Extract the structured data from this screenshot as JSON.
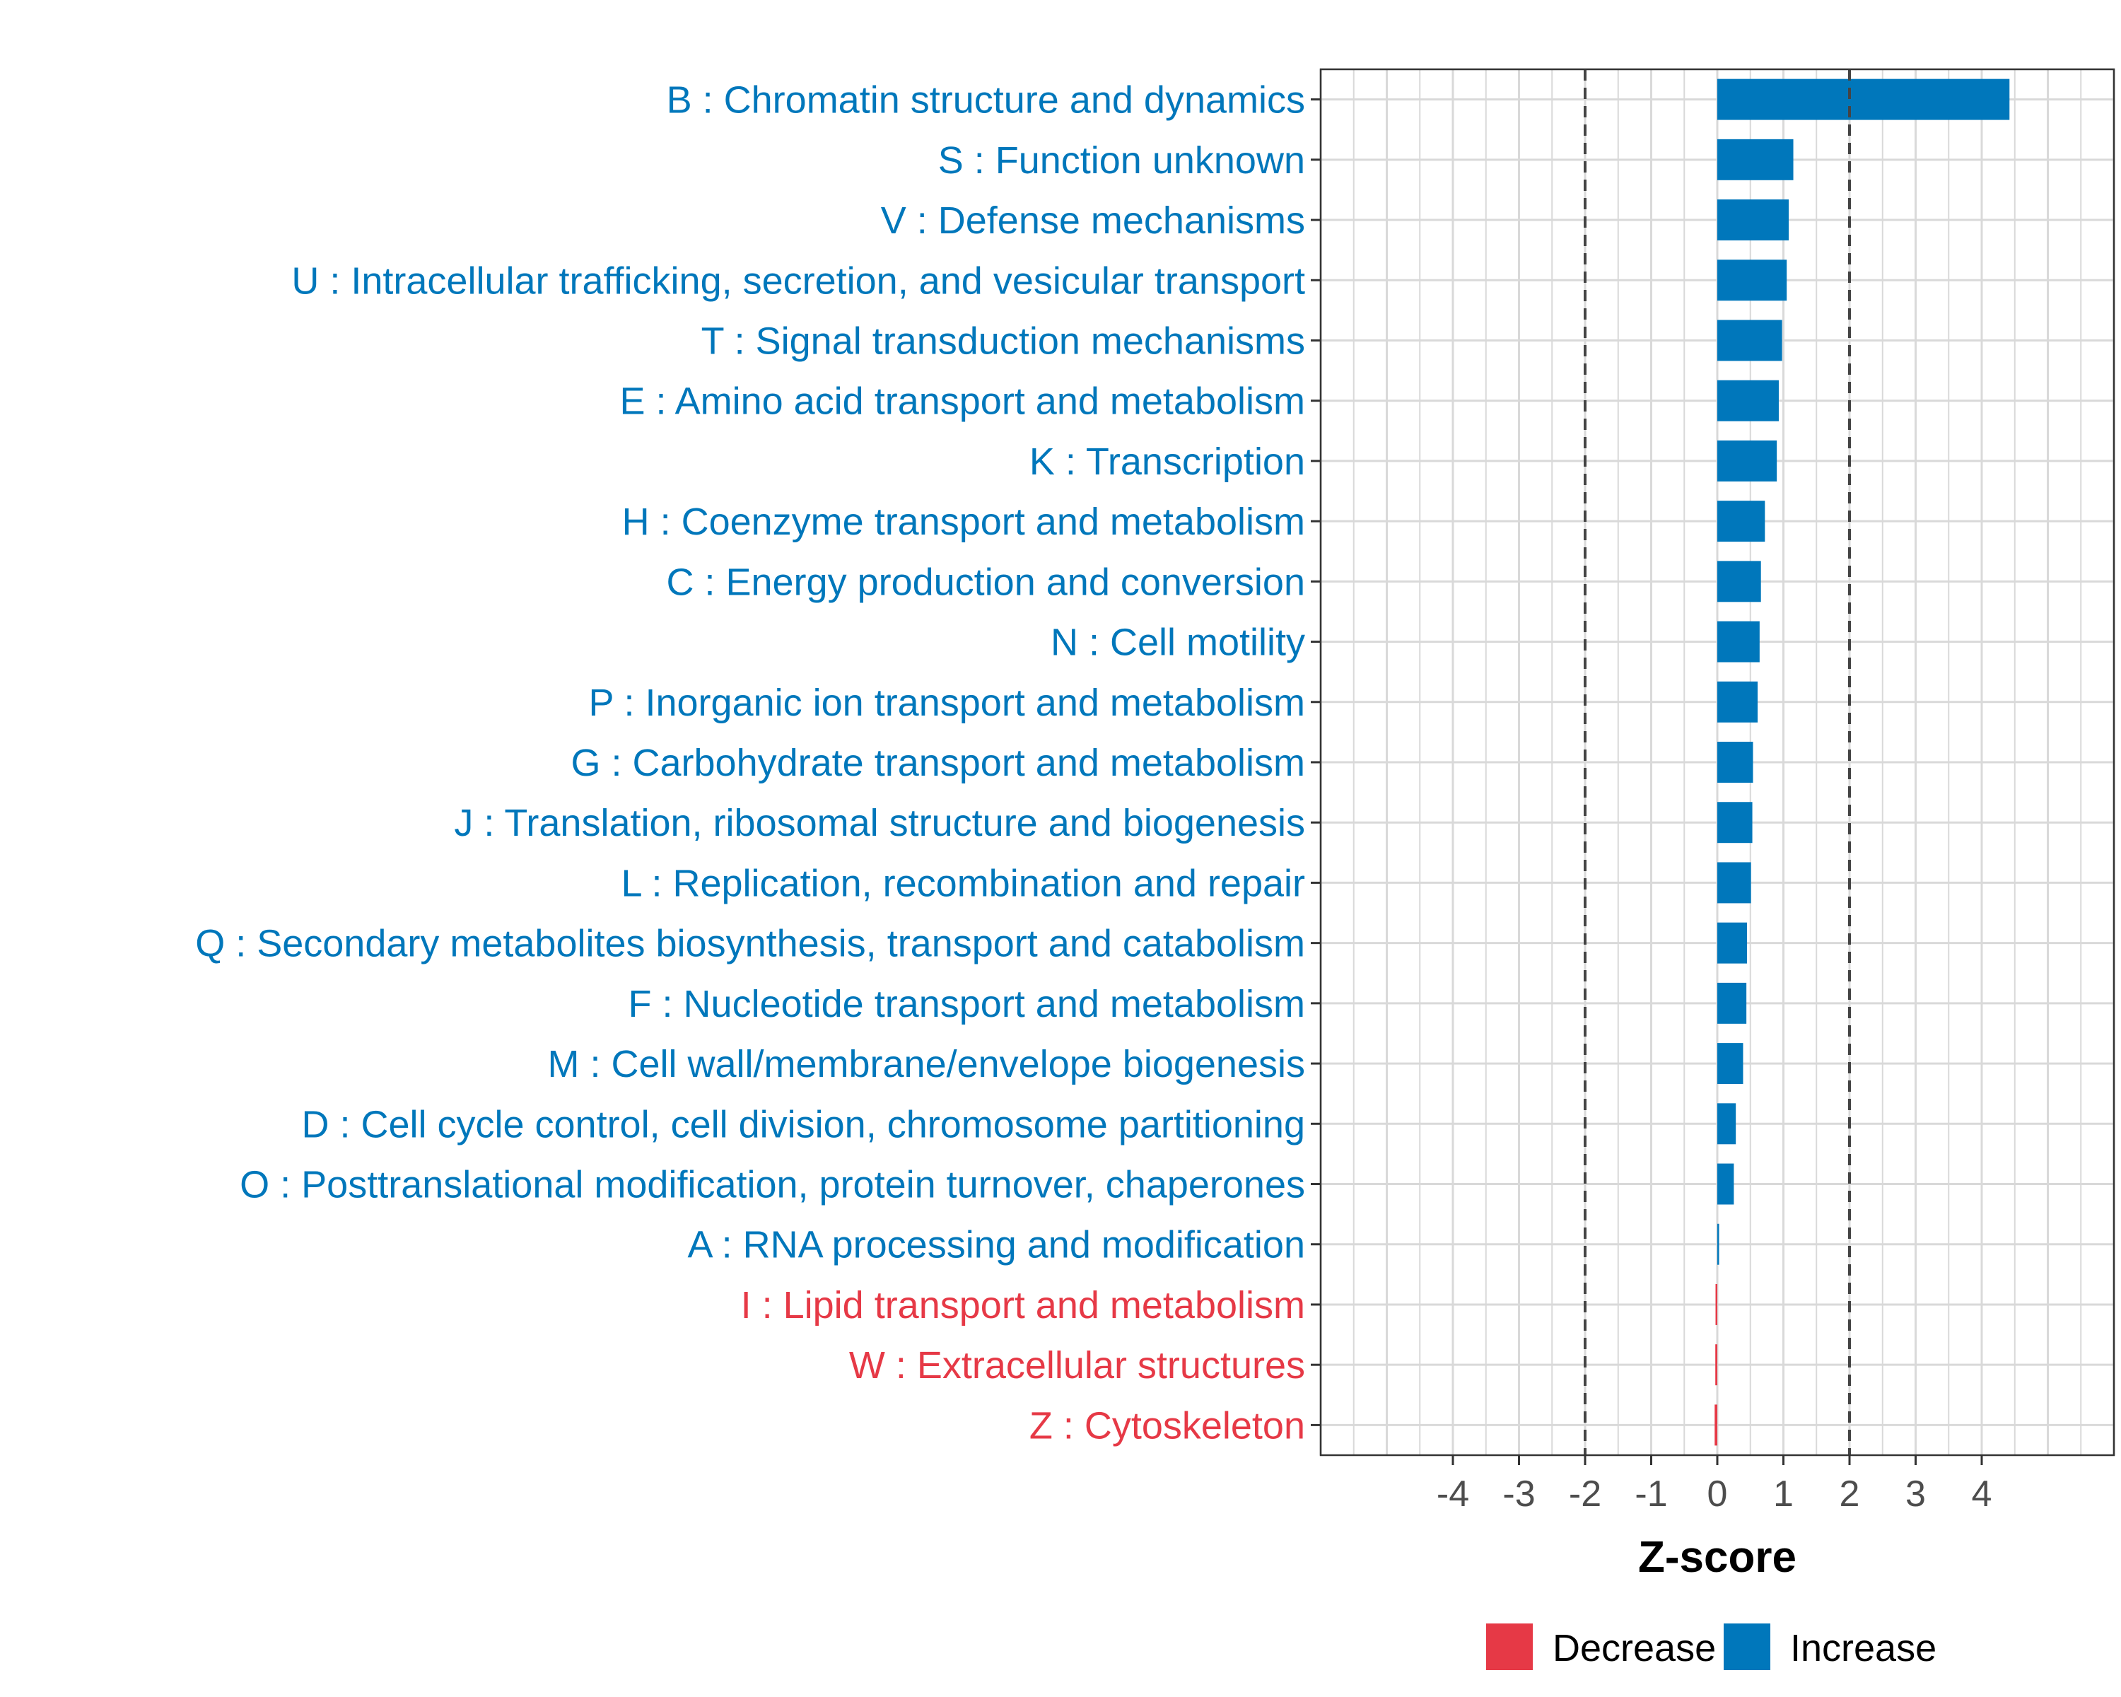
{
  "chart_data": {
    "type": "bar",
    "orientation": "horizontal",
    "title": "",
    "xlabel": "Z-score",
    "ylabel": "",
    "xlim": [
      -6,
      6
    ],
    "xticks": [
      -4,
      -3,
      -2,
      -1,
      0,
      1,
      2,
      3,
      4
    ],
    "threshold_lines": [
      -2,
      2
    ],
    "grid": true,
    "legend_position": "bottom",
    "colors": {
      "Decrease": "#e63946",
      "Increase": "#0077bb",
      "threshold": "#444444",
      "grid": "#d9d9d9"
    },
    "legend": [
      {
        "name": "Decrease",
        "color": "#e63946"
      },
      {
        "name": "Increase",
        "color": "#0077bb"
      }
    ],
    "categories": [
      "B : Chromatin structure and dynamics",
      "S : Function unknown",
      "V : Defense mechanisms",
      "U : Intracellular trafficking, secretion, and vesicular transport",
      "T : Signal transduction mechanisms",
      "E : Amino acid transport and metabolism",
      "K : Transcription",
      "H : Coenzyme transport and metabolism",
      "C : Energy production and conversion",
      "N : Cell motility",
      "P : Inorganic ion transport and metabolism",
      "G : Carbohydrate transport and metabolism",
      "J : Translation, ribosomal structure and biogenesis",
      "L : Replication, recombination and repair",
      "Q : Secondary metabolites biosynthesis, transport and catabolism",
      "F : Nucleotide transport and metabolism",
      "M : Cell wall/membrane/envelope biogenesis",
      "D : Cell cycle control, cell division, chromosome partitioning",
      "O : Posttranslational modification, protein turnover, chaperones",
      "A : RNA processing and modification",
      "I : Lipid transport and metabolism",
      "W : Extracellular structures",
      "Z : Cytoskeleton"
    ],
    "values": [
      4.42,
      1.15,
      1.08,
      1.05,
      0.98,
      0.93,
      0.9,
      0.72,
      0.66,
      0.64,
      0.61,
      0.54,
      0.53,
      0.51,
      0.45,
      0.44,
      0.39,
      0.28,
      0.25,
      0.02,
      -0.02,
      -0.03,
      -0.04
    ],
    "groups": [
      "Increase",
      "Increase",
      "Increase",
      "Increase",
      "Increase",
      "Increase",
      "Increase",
      "Increase",
      "Increase",
      "Increase",
      "Increase",
      "Increase",
      "Increase",
      "Increase",
      "Increase",
      "Increase",
      "Increase",
      "Increase",
      "Increase",
      "Increase",
      "Decrease",
      "Decrease",
      "Decrease"
    ]
  }
}
